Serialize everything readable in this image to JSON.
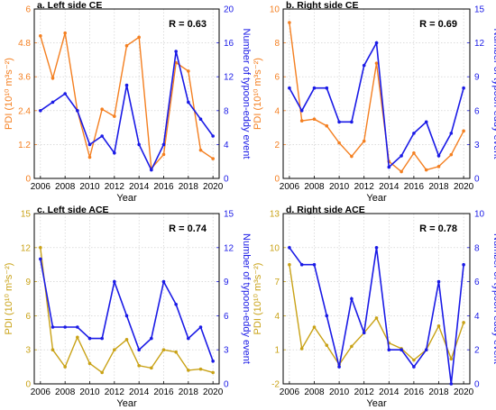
{
  "chart_data": [
    {
      "title": "a. Left side CE",
      "type": "line",
      "xlabel": "Year",
      "ylabel": "PDI (10¹⁰ m³s⁻²)",
      "y2label": "Number of typoon-eddy event",
      "r_text": "R = 0.63",
      "x": [
        2006,
        2007,
        2008,
        2009,
        2010,
        2011,
        2012,
        2013,
        2014,
        2015,
        2016,
        2017,
        2018,
        2019,
        2020
      ],
      "xlim": [
        2005.5,
        2020.5
      ],
      "xticks": [
        "2006",
        "2008",
        "2010",
        "2012",
        "2014",
        "2016",
        "2018",
        "2020"
      ],
      "yticks_left": [
        "0",
        "1.2",
        "2.4",
        "3.6",
        "4.8",
        "6"
      ],
      "yticks_right": [
        "0",
        "4",
        "8",
        "12",
        "16",
        "20"
      ],
      "ylim_left": [
        0,
        6
      ],
      "ylim_right": [
        0,
        20
      ],
      "left_color": "#F47F20",
      "right_color": "#1A1AE6",
      "series": [
        {
          "axis": "left",
          "values": [
            5.05,
            3.55,
            5.15,
            2.4,
            0.75,
            2.45,
            2.2,
            4.7,
            5.0,
            0.35,
            0.85,
            4.1,
            3.8,
            1.0,
            0.7
          ]
        },
        {
          "axis": "right",
          "values": [
            8,
            9,
            10,
            8,
            4,
            5,
            3,
            11,
            4,
            1,
            4,
            15,
            9,
            7,
            5
          ]
        }
      ]
    },
    {
      "title": "b. Right side CE",
      "type": "line",
      "xlabel": "Year",
      "ylabel": "PDI (10¹⁰ m³s⁻²)",
      "y2label": "Number of typoon-eddy event",
      "r_text": "R = 0.69",
      "x": [
        2006,
        2007,
        2008,
        2009,
        2010,
        2011,
        2012,
        2013,
        2014,
        2015,
        2016,
        2017,
        2018,
        2019,
        2020
      ],
      "xlim": [
        2005.5,
        2020.5
      ],
      "xticks": [
        "2006",
        "2008",
        "2010",
        "2012",
        "2014",
        "2016",
        "2018",
        "2020"
      ],
      "yticks_left": [
        "0",
        "2",
        "4",
        "6",
        "8",
        "10"
      ],
      "yticks_right": [
        "0",
        "3",
        "6",
        "9",
        "12",
        "15"
      ],
      "ylim_left": [
        0,
        10
      ],
      "ylim_right": [
        0,
        15
      ],
      "left_color": "#F47F20",
      "right_color": "#1A1AE6",
      "series": [
        {
          "axis": "left",
          "values": [
            9.2,
            3.4,
            3.5,
            3.1,
            2.1,
            1.3,
            2.2,
            6.8,
            1.0,
            0.4,
            1.5,
            0.5,
            0.7,
            1.4,
            2.8
          ]
        },
        {
          "axis": "right",
          "values": [
            8,
            6,
            8,
            8,
            5,
            5,
            10,
            12,
            1,
            2,
            4,
            5,
            2,
            4,
            8
          ]
        }
      ]
    },
    {
      "title": "c. Left side ACE",
      "type": "line",
      "xlabel": "Year",
      "ylabel": "PDI (10¹⁰ m³s⁻²)",
      "y2label": "Number of typoon-eddy event",
      "r_text": "R = 0.74",
      "x": [
        2006,
        2007,
        2008,
        2009,
        2010,
        2011,
        2012,
        2013,
        2014,
        2015,
        2016,
        2017,
        2018,
        2019,
        2020
      ],
      "xlim": [
        2005.5,
        2020.5
      ],
      "xticks": [
        "2006",
        "2008",
        "2010",
        "2012",
        "2014",
        "2016",
        "2018",
        "2020"
      ],
      "yticks_left": [
        "0",
        "3",
        "6",
        "9",
        "12",
        "15"
      ],
      "yticks_right": [
        "0",
        "3",
        "6",
        "9",
        "12",
        "15"
      ],
      "ylim_left": [
        0,
        15
      ],
      "ylim_right": [
        0,
        15
      ],
      "left_color": "#C9A216",
      "right_color": "#1A1AE6",
      "series": [
        {
          "axis": "left",
          "values": [
            12.0,
            3.0,
            1.5,
            4.1,
            1.8,
            1.0,
            3.0,
            3.9,
            1.6,
            1.4,
            3.0,
            2.8,
            1.2,
            1.3,
            1.0
          ]
        },
        {
          "axis": "right",
          "values": [
            11,
            5,
            5,
            5,
            4,
            4,
            9,
            6,
            3,
            4,
            9,
            7,
            4,
            5,
            2
          ]
        }
      ]
    },
    {
      "title": "d. Right side ACE",
      "type": "line",
      "xlabel": "Year",
      "ylabel": "PDI (10¹⁰ m³s⁻²)",
      "y2label": "Number of typoon-eddy event",
      "r_text": "R = 0.78",
      "x": [
        2006,
        2007,
        2008,
        2009,
        2010,
        2011,
        2012,
        2013,
        2014,
        2015,
        2016,
        2017,
        2018,
        2019,
        2020
      ],
      "xlim": [
        2005.5,
        2020.5
      ],
      "xticks": [
        "2006",
        "2008",
        "2010",
        "2012",
        "2014",
        "2016",
        "2018",
        "2020"
      ],
      "yticks_left": [
        "-2",
        "1",
        "4",
        "7",
        "10",
        "13"
      ],
      "yticks_right": [
        "0",
        "2",
        "4",
        "6",
        "8",
        "10"
      ],
      "ylim_left": [
        -2,
        13
      ],
      "ylim_right": [
        0,
        10
      ],
      "left_color": "#C9A216",
      "right_color": "#1A1AE6",
      "series": [
        {
          "axis": "left",
          "values": [
            8.5,
            1.1,
            3.0,
            1.4,
            -0.3,
            1.3,
            2.5,
            3.8,
            1.6,
            1.1,
            0.1,
            1.0,
            3.1,
            0.2,
            3.4
          ]
        },
        {
          "axis": "right",
          "values": [
            8,
            7,
            7,
            4,
            1,
            5,
            3,
            8,
            2,
            2,
            1,
            2,
            6,
            0,
            7
          ]
        }
      ]
    }
  ]
}
